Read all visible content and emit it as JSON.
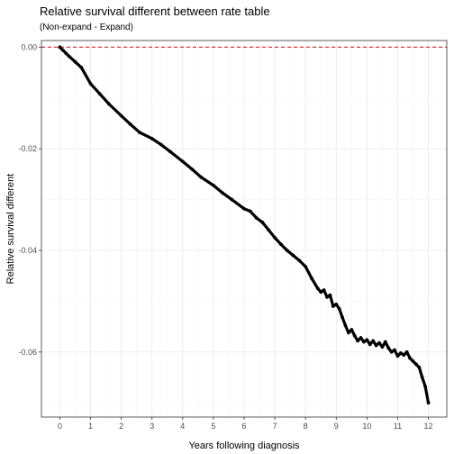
{
  "chart_data": {
    "type": "scatter",
    "title": "Relative survival different between rate table",
    "subtitle": "(Non-expand - Expand)",
    "xlabel": "Years following diagnosis",
    "ylabel": "Relative survival different",
    "xlim": [
      -0.6,
      12.6
    ],
    "ylim": [
      -0.0728,
      0.0013
    ],
    "x_ticks": [
      0,
      1,
      2,
      3,
      4,
      5,
      6,
      7,
      8,
      9,
      10,
      11,
      12
    ],
    "x_tick_labels": [
      "0",
      "1",
      "2",
      "3",
      "4",
      "5",
      "6",
      "7",
      "8",
      "9",
      "10",
      "11",
      "12"
    ],
    "y_ticks": [
      0,
      -0.02,
      -0.04,
      -0.06
    ],
    "y_tick_labels": [
      "0.00",
      "-0.02",
      "-0.04",
      "-0.06"
    ],
    "reference_line": {
      "y": 0,
      "style": "dashed",
      "color": "#e8202a"
    },
    "grid": true,
    "series": [
      {
        "color": "#000000",
        "x": [
          0,
          0.1,
          0.2,
          0.3,
          0.5,
          0.7,
          1.0,
          1.3,
          1.6,
          2.0,
          2.3,
          2.6,
          3.0,
          3.3,
          3.6,
          4.0,
          4.3,
          4.6,
          5.0,
          5.3,
          5.6,
          6.0,
          6.2,
          6.4,
          6.6,
          6.8,
          7.0,
          7.2,
          7.4,
          7.6,
          7.8,
          8.0,
          8.2,
          8.4,
          8.5,
          8.6,
          8.7,
          8.8,
          8.9,
          9.0,
          9.1,
          9.2,
          9.3,
          9.4,
          9.5,
          9.6,
          9.7,
          9.8,
          9.9,
          10.0,
          10.1,
          10.2,
          10.3,
          10.4,
          10.5,
          10.6,
          10.7,
          10.8,
          10.9,
          11.0,
          11.1,
          11.2,
          11.3,
          11.4,
          11.5,
          11.6,
          11.7,
          11.8,
          11.9,
          12.0
        ],
        "y": [
          0,
          -0.0006,
          -0.0012,
          -0.0018,
          -0.0029,
          -0.004,
          -0.0072,
          -0.0092,
          -0.0112,
          -0.0135,
          -0.0152,
          -0.0168,
          -0.018,
          -0.0192,
          -0.0206,
          -0.0225,
          -0.024,
          -0.0256,
          -0.0272,
          -0.0287,
          -0.03,
          -0.0318,
          -0.0323,
          -0.0336,
          -0.0345,
          -0.036,
          -0.0375,
          -0.0388,
          -0.04,
          -0.041,
          -0.042,
          -0.0432,
          -0.0455,
          -0.0475,
          -0.0482,
          -0.0478,
          -0.0492,
          -0.0488,
          -0.051,
          -0.0506,
          -0.0515,
          -0.0532,
          -0.0548,
          -0.0562,
          -0.0556,
          -0.0568,
          -0.0578,
          -0.0572,
          -0.058,
          -0.0576,
          -0.0585,
          -0.0578,
          -0.0587,
          -0.0582,
          -0.059,
          -0.058,
          -0.0592,
          -0.06,
          -0.0596,
          -0.0608,
          -0.0602,
          -0.0606,
          -0.06,
          -0.0612,
          -0.0618,
          -0.0624,
          -0.063,
          -0.065,
          -0.0668,
          -0.07
        ]
      }
    ]
  }
}
